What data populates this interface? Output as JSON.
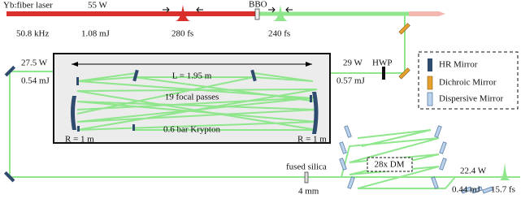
{
  "source": {
    "name": "Yb:fiber laser",
    "power": "55 W",
    "rep_rate": "50.8 kHz",
    "energy": "1.08 mJ",
    "duration": "280 fs"
  },
  "shg": {
    "crystal": "BBO",
    "duration": "240 fs"
  },
  "cell": {
    "length": "L = 1.95 m",
    "passes": "19 focal passes",
    "gas": "0.6 bar Krypton",
    "left_radius": "R = 1 m",
    "right_radius": "R = 1 m"
  },
  "input": {
    "power": "29 W",
    "energy": "0.57 mJ",
    "waveplate": "HWP"
  },
  "output_cell": {
    "power": "27.5 W",
    "energy": "0.54 mJ"
  },
  "compressor": {
    "label": "28x DM",
    "plate": "fused silica",
    "thickness": "4 mm"
  },
  "final": {
    "power": "22.4 W",
    "energy": "0.44 mJ",
    "duration": "15.7 fs"
  },
  "legend": {
    "items": [
      "HR Mirror",
      "Dichroic Mirror",
      "Dispersive Mirror"
    ]
  }
}
